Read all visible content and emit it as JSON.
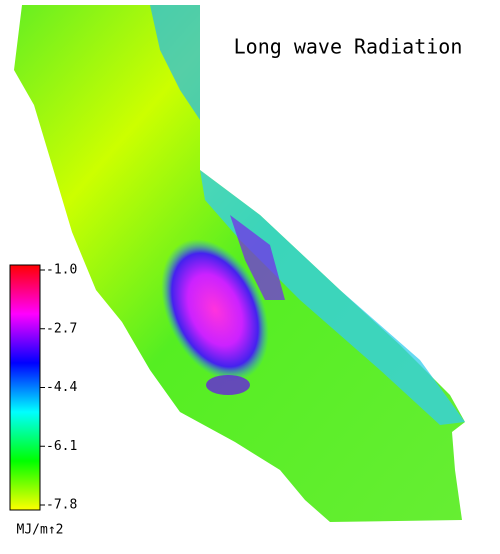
{
  "title": "Long wave Radiation",
  "colorbar": {
    "label": "MJ/m↑2",
    "lim": [
      -7.8,
      -1
    ],
    "ticks": [
      {
        "value": -1,
        "label": "-1.0"
      },
      -2.7,
      -4.4,
      -6.1,
      -7.8
    ],
    "colors": [
      "#ffff00",
      "#00ff00",
      "#00ffff",
      "#0000ff",
      "#ff00ff",
      "#ff0000"
    ]
  }
}
